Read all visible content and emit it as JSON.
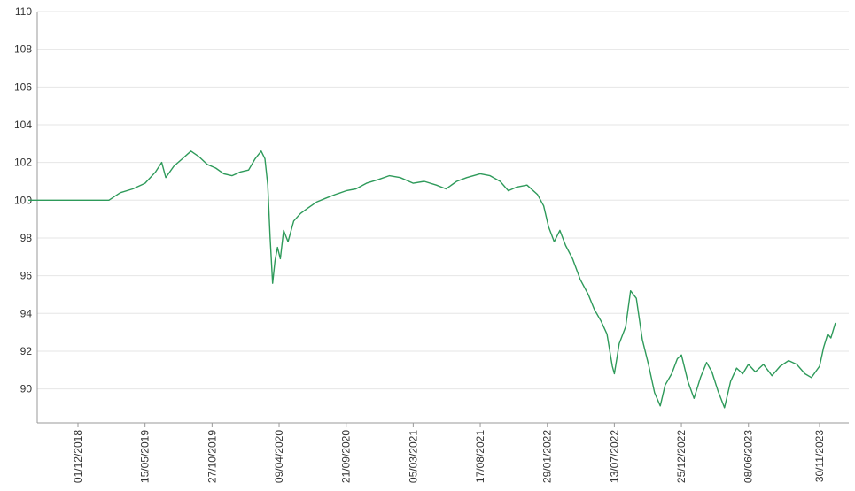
{
  "chart_data": {
    "type": "line",
    "title": "",
    "xlabel": "",
    "ylabel": "",
    "ylim": [
      88.2,
      110
    ],
    "y_ticks": [
      90,
      92,
      94,
      96,
      98,
      100,
      102,
      104,
      106,
      108,
      110
    ],
    "x_ticks": [
      "01/12/2018",
      "15/05/2019",
      "27/10/2019",
      "09/04/2020",
      "21/09/2020",
      "05/03/2021",
      "17/08/2021",
      "29/01/2022",
      "13/07/2022",
      "25/12/2022",
      "08/06/2023",
      "30/11/2023"
    ],
    "grid": "horizontal",
    "legend": "none",
    "line_color": "#2e9a5a",
    "series": [
      {
        "points": [
          [
            "2018-08-01",
            100.0
          ],
          [
            "2018-10-01",
            100.0
          ],
          [
            "2018-12-01",
            100.0
          ],
          [
            "2019-01-01",
            100.0
          ],
          [
            "2019-02-15",
            100.0
          ],
          [
            "2019-03-15",
            100.4
          ],
          [
            "2019-04-15",
            100.6
          ],
          [
            "2019-05-15",
            100.9
          ],
          [
            "2019-06-10",
            101.5
          ],
          [
            "2019-06-25",
            102.0
          ],
          [
            "2019-07-05",
            101.2
          ],
          [
            "2019-07-25",
            101.8
          ],
          [
            "2019-08-15",
            102.2
          ],
          [
            "2019-09-05",
            102.6
          ],
          [
            "2019-09-25",
            102.3
          ],
          [
            "2019-10-15",
            101.9
          ],
          [
            "2019-11-05",
            101.7
          ],
          [
            "2019-11-25",
            101.4
          ],
          [
            "2019-12-15",
            101.3
          ],
          [
            "2020-01-05",
            101.5
          ],
          [
            "2020-01-25",
            101.6
          ],
          [
            "2020-02-10",
            102.2
          ],
          [
            "2020-02-25",
            102.6
          ],
          [
            "2020-03-05",
            102.2
          ],
          [
            "2020-03-12",
            100.8
          ],
          [
            "2020-03-18",
            98.0
          ],
          [
            "2020-03-24",
            95.6
          ],
          [
            "2020-03-30",
            96.8
          ],
          [
            "2020-04-05",
            97.5
          ],
          [
            "2020-04-12",
            96.9
          ],
          [
            "2020-04-20",
            98.4
          ],
          [
            "2020-05-01",
            97.8
          ],
          [
            "2020-05-15",
            98.9
          ],
          [
            "2020-06-01",
            99.3
          ],
          [
            "2020-06-20",
            99.6
          ],
          [
            "2020-07-10",
            99.9
          ],
          [
            "2020-08-01",
            100.1
          ],
          [
            "2020-08-25",
            100.3
          ],
          [
            "2020-09-21",
            100.5
          ],
          [
            "2020-10-15",
            100.6
          ],
          [
            "2020-11-10",
            100.9
          ],
          [
            "2020-12-10",
            101.1
          ],
          [
            "2021-01-05",
            101.3
          ],
          [
            "2021-02-01",
            101.2
          ],
          [
            "2021-03-05",
            100.9
          ],
          [
            "2021-04-01",
            101.0
          ],
          [
            "2021-05-01",
            100.8
          ],
          [
            "2021-05-25",
            100.6
          ],
          [
            "2021-06-20",
            101.0
          ],
          [
            "2021-07-15",
            101.2
          ],
          [
            "2021-08-17",
            101.4
          ],
          [
            "2021-09-10",
            101.3
          ],
          [
            "2021-10-05",
            101.0
          ],
          [
            "2021-10-25",
            100.5
          ],
          [
            "2021-11-15",
            100.7
          ],
          [
            "2021-12-10",
            100.8
          ],
          [
            "2022-01-05",
            100.3
          ],
          [
            "2022-01-20",
            99.7
          ],
          [
            "2022-02-01",
            98.6
          ],
          [
            "2022-02-15",
            97.8
          ],
          [
            "2022-03-01",
            98.4
          ],
          [
            "2022-03-15",
            97.6
          ],
          [
            "2022-04-01",
            96.9
          ],
          [
            "2022-04-20",
            95.8
          ],
          [
            "2022-05-10",
            95.0
          ],
          [
            "2022-05-25",
            94.2
          ],
          [
            "2022-06-10",
            93.6
          ],
          [
            "2022-06-25",
            92.9
          ],
          [
            "2022-07-08",
            91.2
          ],
          [
            "2022-07-13",
            90.8
          ],
          [
            "2022-07-25",
            92.4
          ],
          [
            "2022-08-10",
            93.3
          ],
          [
            "2022-08-22",
            95.2
          ],
          [
            "2022-09-05",
            94.8
          ],
          [
            "2022-09-20",
            92.6
          ],
          [
            "2022-10-05",
            91.3
          ],
          [
            "2022-10-20",
            89.8
          ],
          [
            "2022-11-03",
            89.1
          ],
          [
            "2022-11-15",
            90.2
          ],
          [
            "2022-12-01",
            90.8
          ],
          [
            "2022-12-15",
            91.6
          ],
          [
            "2022-12-25",
            91.8
          ],
          [
            "2023-01-10",
            90.4
          ],
          [
            "2023-01-25",
            89.5
          ],
          [
            "2023-02-10",
            90.6
          ],
          [
            "2023-02-25",
            91.4
          ],
          [
            "2023-03-10",
            90.9
          ],
          [
            "2023-03-25",
            89.9
          ],
          [
            "2023-04-10",
            89.0
          ],
          [
            "2023-04-25",
            90.4
          ],
          [
            "2023-05-10",
            91.1
          ],
          [
            "2023-05-25",
            90.8
          ],
          [
            "2023-06-08",
            91.3
          ],
          [
            "2023-06-25",
            90.9
          ],
          [
            "2023-07-15",
            91.3
          ],
          [
            "2023-08-05",
            90.7
          ],
          [
            "2023-08-25",
            91.2
          ],
          [
            "2023-09-15",
            91.5
          ],
          [
            "2023-10-05",
            91.3
          ],
          [
            "2023-10-25",
            90.8
          ],
          [
            "2023-11-10",
            90.6
          ],
          [
            "2023-11-30",
            91.2
          ],
          [
            "2023-12-10",
            92.2
          ],
          [
            "2023-12-20",
            92.9
          ],
          [
            "2023-12-28",
            92.7
          ],
          [
            "2024-01-08",
            93.5
          ]
        ]
      }
    ]
  }
}
